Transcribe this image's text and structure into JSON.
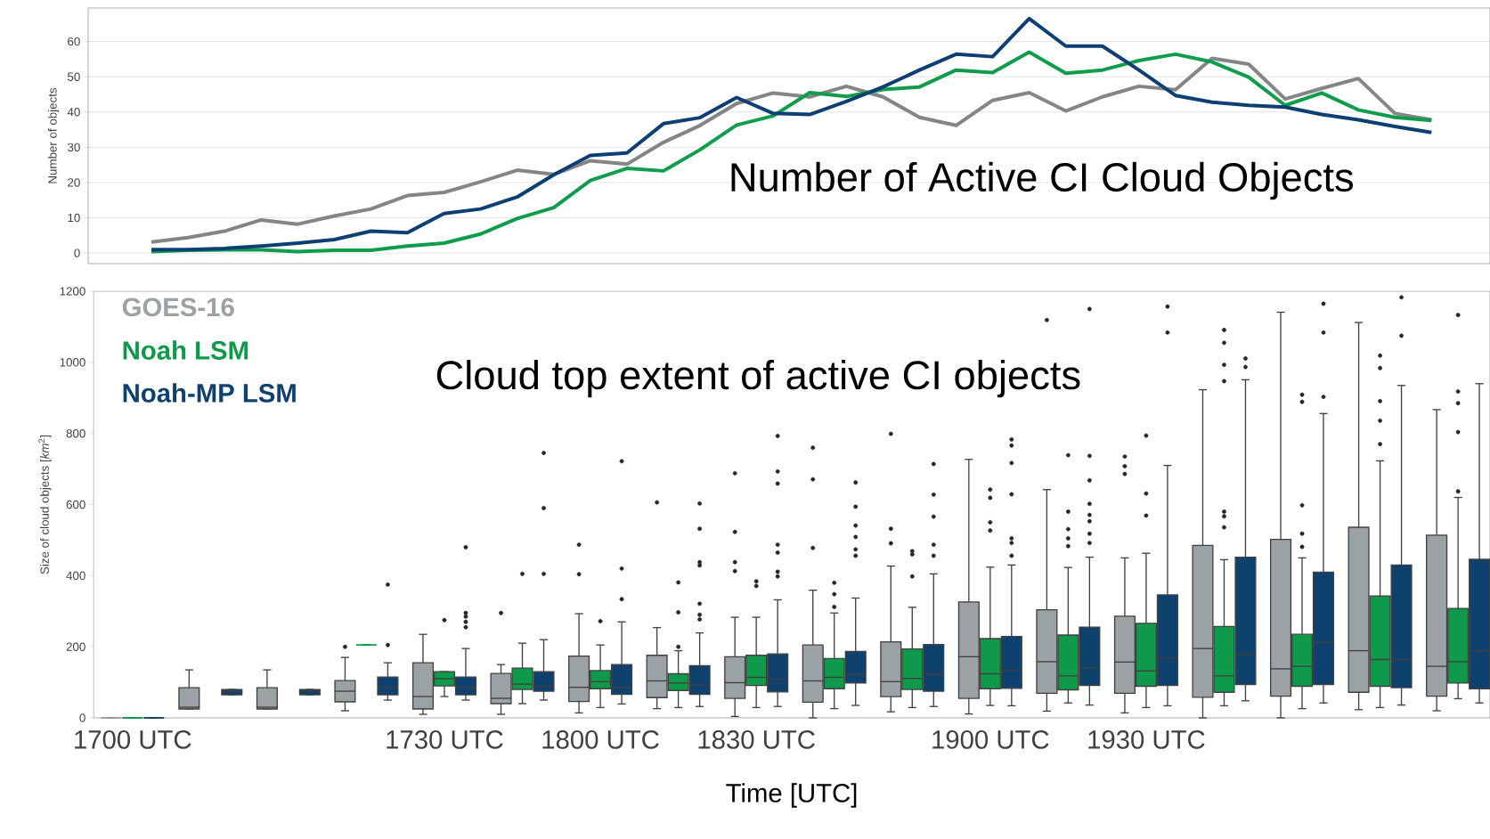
{
  "chart_data": [
    {
      "type": "line",
      "title": "Number of Active CI Cloud Objects",
      "ylabel": "Number of objects",
      "categories": [
        null,
        null,
        null,
        null,
        null,
        null,
        null,
        null,
        null,
        null,
        null,
        null,
        null,
        null,
        null,
        null,
        null,
        null,
        null,
        null,
        null,
        null,
        null,
        null,
        null,
        null,
        null,
        null,
        null,
        null,
        null,
        null,
        null,
        null,
        null,
        null
      ],
      "series": [
        {
          "color": "#858585",
          "values": [
            3.1,
            4.4,
            6.2,
            9.4,
            8.2,
            10.5,
            12.5,
            16.3,
            17.2,
            20.2,
            23.5,
            22.3,
            26.2,
            25.2,
            31.4,
            36.2,
            42.4,
            45.4,
            44.3,
            47.3,
            44.3,
            38.5,
            36.2,
            43.3,
            45.5,
            40.3,
            44.3,
            47.3,
            46.3,
            55.2,
            53.6,
            43.7,
            46.7,
            49.5,
            39.6,
            37.8
          ]
        },
        {
          "color": "#0f9d4b",
          "values": [
            0.4,
            0.8,
            0.9,
            0.9,
            0.4,
            0.8,
            0.8,
            2,
            2.8,
            5.4,
            9.8,
            12.9,
            20.6,
            24,
            23.3,
            29.3,
            36.3,
            38.9,
            45.5,
            44.4,
            46.4,
            47.1,
            51.9,
            51.2,
            57,
            51,
            51.9,
            54.6,
            56.4,
            54.2,
            49.9,
            41.9,
            45.4,
            40.6,
            38.5,
            37.6
          ]
        },
        {
          "color": "#0d3f73",
          "values": [
            1,
            1,
            1.3,
            2,
            2.8,
            3.8,
            6.2,
            5.8,
            11.2,
            12.5,
            15.9,
            22.2,
            27.7,
            28.4,
            36.7,
            38.4,
            44.1,
            39.6,
            39.3,
            43,
            47.1,
            51.9,
            56.4,
            55.7,
            66.5,
            58.7,
            58.7,
            51.9,
            44.7,
            42.8,
            41.9,
            41.4,
            39.3,
            37.8,
            35.9,
            34.2
          ]
        }
      ],
      "ylim": [
        -3,
        69.5
      ],
      "yticks": [
        0,
        10,
        20,
        30,
        40,
        50,
        60
      ],
      "grid": "y"
    },
    {
      "type": "box",
      "title": "Cloud top extent of active CI objects",
      "ylabel": "Size of cloud objects [*km*$^{2}$]",
      "xlabel": "Time [UTC]",
      "categories": [
        "1700 UTC",
        null,
        null,
        null,
        "1730 UTC",
        null,
        "1800 UTC",
        null,
        "1830 UTC",
        null,
        null,
        "1900 UTC",
        null,
        "1930 UTC",
        null,
        null,
        null,
        null
      ],
      "ylim": [
        0,
        1200
      ],
      "yticks": [
        0,
        200,
        400,
        600,
        800,
        1000,
        1200
      ],
      "legend": "top left",
      "series": [
        {
          "name": "GOES-16",
          "color": "#9aa2a5",
          "boxes": [
            {
              "low": 0,
              "q1": 0,
              "median": 0,
              "q3": 0,
              "high": 0
            },
            {
              "low": 25,
              "q1": 25,
              "median": 30,
              "q3": 85,
              "high": 135
            },
            {
              "low": 25,
              "q1": 25,
              "median": 30,
              "q3": 85,
              "high": 135
            },
            {
              "low": 20,
              "q1": 45,
              "median": 75,
              "q3": 105,
              "high": 170,
              "outliers": [
                200
              ]
            },
            {
              "low": 10,
              "q1": 25,
              "median": 60,
              "q3": 155,
              "high": 235
            },
            {
              "low": 10,
              "q1": 40,
              "median": 55,
              "q3": 125,
              "high": 150,
              "outliers": [
                295
              ]
            },
            {
              "low": 14,
              "q1": 46,
              "median": 86,
              "q3": 174,
              "high": 293,
              "outliers": [
                404,
                487
              ]
            },
            {
              "low": 26,
              "q1": 57,
              "median": 104,
              "q3": 176,
              "high": 254,
              "outliers": [
                606
              ]
            },
            {
              "low": 4,
              "q1": 55,
              "median": 99,
              "q3": 172,
              "high": 283,
              "outliers": [
                413,
                438,
                523,
                688
              ]
            },
            {
              "low": 0,
              "q1": 44,
              "median": 104,
              "q3": 205,
              "high": 359,
              "outliers": [
                478,
                671,
                760
              ]
            },
            {
              "low": 17,
              "q1": 60,
              "median": 102,
              "q3": 214,
              "high": 427,
              "outliers": [
                491,
                532,
                799
              ]
            },
            {
              "low": 11,
              "q1": 55,
              "median": 172,
              "q3": 326,
              "high": 727
            },
            {
              "low": 19,
              "q1": 69,
              "median": 158,
              "q3": 304,
              "high": 642,
              "outliers": [
                1119
              ]
            },
            {
              "low": 14,
              "q1": 69,
              "median": 157,
              "q3": 286,
              "high": 450,
              "outliers": [
                686,
                708,
                735
              ]
            },
            {
              "low": 0,
              "q1": 58,
              "median": 195,
              "q3": 485,
              "high": 923
            },
            {
              "low": 0,
              "q1": 61,
              "median": 138,
              "q3": 502,
              "high": 1141
            },
            {
              "low": 23,
              "q1": 72,
              "median": 189,
              "q3": 536,
              "high": 1112
            },
            {
              "low": 20,
              "q1": 61,
              "median": 145,
              "q3": 514,
              "high": 867
            }
          ]
        },
        {
          "name": "Noah LSM",
          "color": "#0e9a4a",
          "boxes": [
            {
              "low": 0,
              "q1": 0,
              "median": 0,
              "q3": 0,
              "high": 0
            },
            null,
            null,
            {
              "low": 205,
              "q1": 205,
              "median": 205,
              "q3": 205,
              "high": 205
            },
            {
              "low": 60,
              "q1": 90,
              "median": 110,
              "q3": 130,
              "high": 130,
              "outliers": [
                275
              ]
            },
            {
              "low": 40,
              "q1": 80,
              "median": 95,
              "q3": 140,
              "high": 210,
              "outliers": [
                405
              ]
            },
            {
              "low": 29,
              "q1": 82,
              "median": 102,
              "q3": 133,
              "high": 205,
              "outliers": [
                272
              ]
            },
            {
              "low": 29,
              "q1": 77,
              "median": 98,
              "q3": 124,
              "high": 189,
              "outliers": [
                200,
                297,
                381
              ]
            },
            {
              "low": 29,
              "q1": 91,
              "median": 114,
              "q3": 176,
              "high": 283,
              "outliers": [
                371,
                384
              ]
            },
            {
              "low": 26,
              "q1": 82,
              "median": 114,
              "q3": 167,
              "high": 295,
              "outliers": [
                312,
                348,
                380
              ]
            },
            {
              "low": 29,
              "q1": 80,
              "median": 111,
              "q3": 194,
              "high": 311,
              "outliers": [
                398,
                460,
                469
              ]
            },
            {
              "low": 35,
              "q1": 82,
              "median": 124,
              "q3": 223,
              "high": 424,
              "outliers": [
                527,
                550,
                619,
                642
              ]
            },
            {
              "low": 42,
              "q1": 79,
              "median": 118,
              "q3": 233,
              "high": 423,
              "outliers": [
                483,
                505,
                531,
                580,
                739
              ]
            },
            {
              "low": 29,
              "q1": 89,
              "median": 132,
              "q3": 266,
              "high": 463,
              "outliers": [
                569,
                631,
                794
              ]
            },
            {
              "low": 34,
              "q1": 72,
              "median": 118,
              "q3": 257,
              "high": 445,
              "outliers": [
                536,
                567,
                580,
                947,
                993,
                1055,
                1091
              ]
            },
            {
              "low": 26,
              "q1": 89,
              "median": 145,
              "q3": 235,
              "high": 450,
              "outliers": [
                481,
                518,
                598,
                889,
                909
              ]
            },
            {
              "low": 29,
              "q1": 89,
              "median": 164,
              "q3": 343,
              "high": 723,
              "outliers": [
                770,
                836,
                891,
                984,
                1019
              ]
            },
            {
              "low": 54,
              "q1": 98,
              "median": 158,
              "q3": 308,
              "high": 620,
              "outliers": [
                637,
                804,
                885,
                918,
                1133
              ]
            }
          ]
        },
        {
          "name": "Noah-MP LSM",
          "color": "#0f416e",
          "boxes": [
            {
              "low": 0,
              "q1": 0,
              "median": 0,
              "q3": 0,
              "high": 0
            },
            {
              "low": 65,
              "q1": 65,
              "median": 75,
              "q3": 80,
              "high": 80
            },
            {
              "low": 65,
              "q1": 65,
              "median": 75,
              "q3": 80,
              "high": 80
            },
            {
              "low": 50,
              "q1": 65,
              "median": 85,
              "q3": 115,
              "high": 155,
              "outliers": [
                205,
                375
              ]
            },
            {
              "low": 50,
              "q1": 65,
              "median": 85,
              "q3": 115,
              "high": 195,
              "outliers": [
                255,
                270,
                285,
                295,
                480
              ]
            },
            {
              "low": 50,
              "q1": 75,
              "median": 90,
              "q3": 130,
              "high": 220,
              "outliers": [
                405,
                590,
                745
              ]
            },
            {
              "low": 39,
              "q1": 66,
              "median": 86,
              "q3": 150,
              "high": 270,
              "outliers": [
                334,
                420,
                722
              ]
            },
            {
              "low": 32,
              "q1": 66,
              "median": 93,
              "q3": 147,
              "high": 239,
              "outliers": [
                277,
                290,
                321,
                429,
                438,
                532,
                603
              ]
            },
            {
              "low": 32,
              "q1": 73,
              "median": 108,
              "q3": 180,
              "high": 332,
              "outliers": [
                398,
                411,
                465,
                487,
                659,
                693,
                793
              ]
            },
            {
              "low": 35,
              "q1": 98,
              "median": 122,
              "q3": 187,
              "high": 337,
              "outliers": [
                456,
                474,
                509,
                541,
                594,
                662
              ]
            },
            {
              "low": 32,
              "q1": 75,
              "median": 122,
              "q3": 206,
              "high": 405,
              "outliers": [
                456,
                487,
                566,
                628,
                714
              ]
            },
            {
              "low": 34,
              "q1": 83,
              "median": 135,
              "q3": 229,
              "high": 430,
              "outliers": [
                456,
                492,
                505,
                629,
                717,
                766,
                783
              ]
            },
            {
              "low": 36,
              "q1": 91,
              "median": 140,
              "q3": 255,
              "high": 452,
              "outliers": [
                492,
                518,
                553,
                571,
                602,
                668,
                737,
                1150
              ]
            },
            {
              "low": 34,
              "q1": 91,
              "median": 169,
              "q3": 346,
              "high": 710,
              "outliers": [
                1084,
                1157
              ]
            },
            {
              "low": 48,
              "q1": 94,
              "median": 178,
              "q3": 452,
              "high": 951,
              "outliers": [
                987,
                1011
              ]
            },
            {
              "low": 42,
              "q1": 94,
              "median": 213,
              "q3": 410,
              "high": 856,
              "outliers": [
                903,
                1084,
                1165
              ]
            },
            {
              "low": 36,
              "q1": 85,
              "median": 164,
              "q3": 430,
              "high": 935,
              "outliers": [
                1075,
                1183
              ]
            },
            {
              "low": 42,
              "q1": 82,
              "median": 189,
              "q3": 446,
              "high": 940
            }
          ]
        }
      ]
    }
  ]
}
